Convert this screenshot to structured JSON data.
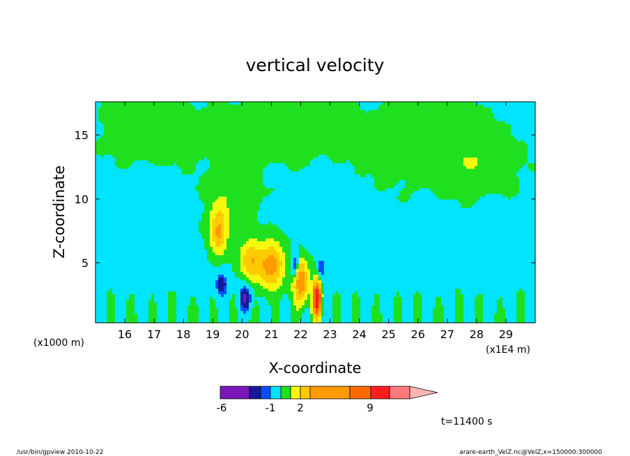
{
  "chart_data": {
    "type": "heatmap",
    "title": "vertical velocity",
    "xlabel": "X-coordinate",
    "ylabel": "Z-coordinate",
    "x_unit_label": "(x1E4 m)",
    "y_unit_label": "(x1000 m)",
    "xlim": [
      15.0,
      30.0
    ],
    "ylim": [
      0.3,
      17.6
    ],
    "x_ticks": [
      "16",
      "17",
      "18",
      "19",
      "20",
      "21",
      "22",
      "23",
      "24",
      "25",
      "26",
      "27",
      "28",
      "29"
    ],
    "y_ticks": [
      "5",
      "10",
      "15"
    ],
    "time_label": "t=11400 s",
    "colorbar": {
      "colors": [
        "#7b16b8",
        "#17179b",
        "#0a4dff",
        "#00e4ff",
        "#1fe01f",
        "#f8f80e",
        "#ffcb00",
        "#ff9a00",
        "#ff6a00",
        "#ff1e1e",
        "#ff7a7a",
        "#ffb3b3"
      ],
      "tick_labels": [
        "-6",
        "-1",
        "2",
        "9"
      ],
      "extend": "max"
    },
    "anomalies": [
      {
        "x": 19.2,
        "z": 7.5,
        "sx": 0.28,
        "sz": 1.8,
        "amp": 4.2
      },
      {
        "x": 20.3,
        "z": 5.2,
        "sx": 0.35,
        "sz": 1.5,
        "amp": 3.8
      },
      {
        "x": 21.0,
        "z": 4.8,
        "sx": 0.4,
        "sz": 1.7,
        "amp": 5.0
      },
      {
        "x": 22.0,
        "z": 3.5,
        "sx": 0.25,
        "sz": 1.6,
        "amp": 5.5
      },
      {
        "x": 22.55,
        "z": 2.2,
        "sx": 0.14,
        "sz": 1.3,
        "amp": 11.0
      },
      {
        "x": 19.3,
        "z": 3.3,
        "sx": 0.2,
        "sz": 0.9,
        "amp": -3.8
      },
      {
        "x": 20.1,
        "z": 2.2,
        "sx": 0.2,
        "sz": 1.0,
        "amp": -4.2
      },
      {
        "x": 21.8,
        "z": 4.8,
        "sx": 0.12,
        "sz": 1.0,
        "amp": -3.5
      },
      {
        "x": 22.7,
        "z": 4.5,
        "sx": 0.1,
        "sz": 0.9,
        "amp": -3.0
      },
      {
        "x": 19.6,
        "z": 10.5,
        "sx": 0.8,
        "sz": 2.5,
        "amp": 0.9
      },
      {
        "x": 17.0,
        "z": 15.5,
        "sx": 1.5,
        "sz": 2.2,
        "amp": 0.9
      },
      {
        "x": 21.5,
        "z": 15.5,
        "sx": 1.8,
        "sz": 2.2,
        "amp": 0.9
      },
      {
        "x": 26.5,
        "z": 14.5,
        "sx": 2.0,
        "sz": 3.0,
        "amp": 0.9
      },
      {
        "x": 28.0,
        "z": 12.5,
        "sx": 1.2,
        "sz": 1.8,
        "amp": 0.8
      }
    ]
  },
  "footer": {
    "left": "/usr/bin/gpview   2010-10-22",
    "right": "arare-earth_VelZ.nc@VelZ,x=150000:300000"
  }
}
